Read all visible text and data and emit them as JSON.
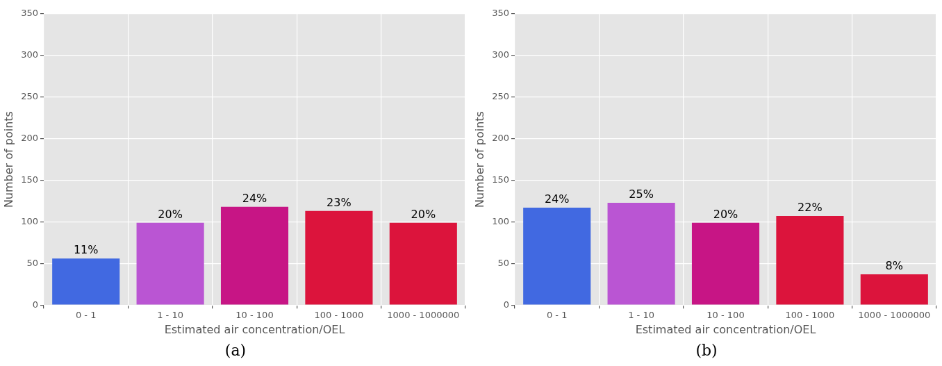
{
  "chart_data": [
    {
      "type": "bar",
      "categories": [
        "0 - 1",
        "1 - 10",
        "10 - 100",
        "100 - 1000",
        "1000 - 1000000"
      ],
      "values": [
        56,
        99,
        118,
        113,
        99
      ],
      "colors": [
        "#4169e1",
        "#ba55d3",
        "#c71585",
        "#dc143c",
        "#dc143c"
      ],
      "xlabel": "Estimated air concentration/OEL",
      "ylabel": "Number of points",
      "ylim": [
        0,
        350
      ],
      "yticks": [
        0,
        50,
        100,
        150,
        200,
        250,
        300,
        350
      ],
      "grid": true,
      "annotations": [
        {
          "text": "11%",
          "x": "0 - 1",
          "y": 56
        },
        {
          "text": "20%",
          "x": "1 - 10",
          "y": 99
        },
        {
          "text": "24%",
          "x": "10 - 100",
          "y": 118
        },
        {
          "text": "23%",
          "x": "100 - 1000",
          "y": 113
        },
        {
          "text": "20%",
          "x": "1000 - 1000000",
          "y": 99
        },
        "(a)"
      ]
    },
    {
      "type": "bar",
      "categories": [
        "0 - 1",
        "1 - 10",
        "10 - 100",
        "100 - 1000",
        "1000 - 1000000"
      ],
      "values": [
        117,
        123,
        99,
        107,
        37
      ],
      "colors": [
        "#4169e1",
        "#ba55d3",
        "#c71585",
        "#dc143c",
        "#dc143c"
      ],
      "xlabel": "Estimated air concentration/OEL",
      "ylabel": "Number of points",
      "ylim": [
        0,
        350
      ],
      "yticks": [
        0,
        50,
        100,
        150,
        200,
        250,
        300,
        350
      ],
      "grid": true,
      "annotations": [
        {
          "text": "24%",
          "x": "0 - 1",
          "y": 117
        },
        {
          "text": "25%",
          "x": "1 - 10",
          "y": 123
        },
        {
          "text": "20%",
          "x": "10 - 100",
          "y": 99
        },
        {
          "text": "22%",
          "x": "100 - 1000",
          "y": 107
        },
        {
          "text": "8%",
          "x": "1000 - 1000000",
          "y": 37
        },
        "(b)"
      ]
    }
  ]
}
